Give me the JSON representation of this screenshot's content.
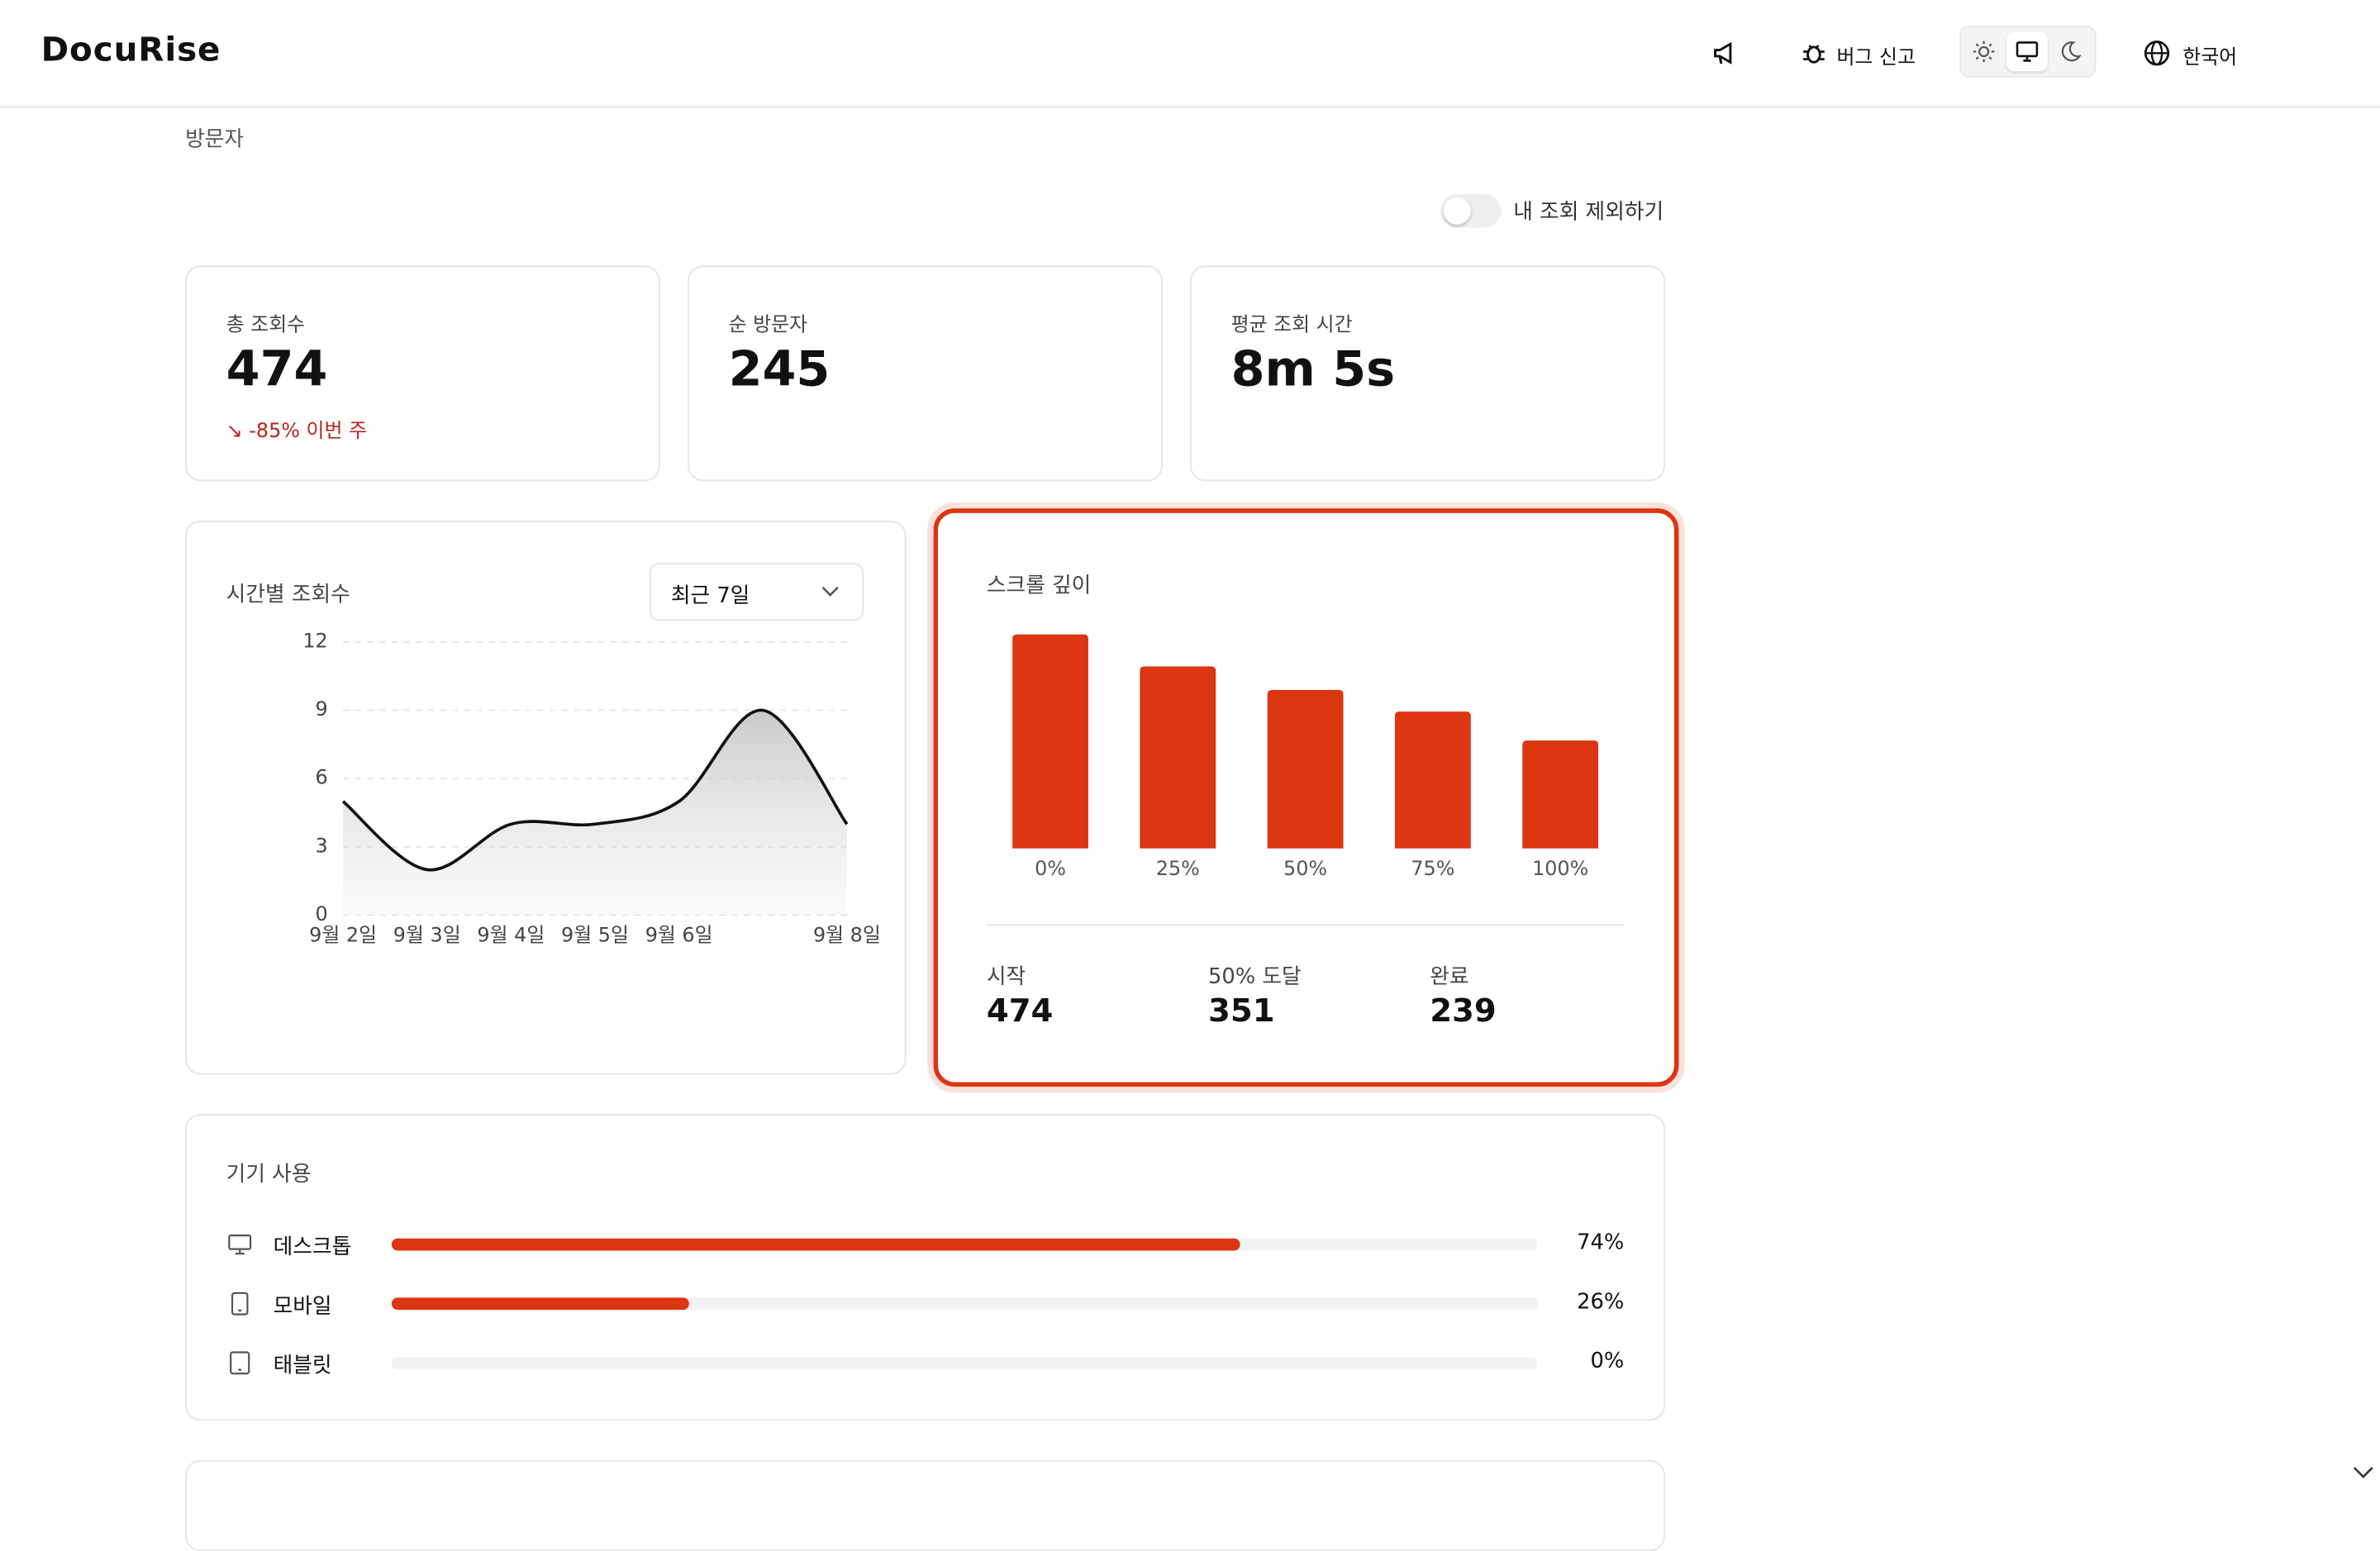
{
  "header": {
    "logo": "DocuRise",
    "bug_report": "버그 신고",
    "language": "한국어"
  },
  "page_title": "방문자",
  "toggle_label": "내 조회 제외하기",
  "stats": [
    {
      "label": "총 조회수",
      "value": "474",
      "change": "-85% 이번 주"
    },
    {
      "label": "순 방문자",
      "value": "245"
    },
    {
      "label": "평균 조회 시간",
      "value": "8m 5s"
    }
  ],
  "chart_data": [
    {
      "type": "line",
      "title": "시간별 조회수",
      "range_select": "최근 7일",
      "categories": [
        "9월 2일",
        "9월 3일",
        "9월 4일",
        "9월 5일",
        "9월 6일",
        null,
        "9월 8일"
      ],
      "values": [
        5,
        2,
        4,
        4,
        5,
        9,
        4
      ],
      "color": "#111111",
      "ylim": [
        0,
        12
      ],
      "yticks": [
        0,
        3,
        6,
        9,
        12
      ],
      "grid": true
    },
    {
      "type": "bar",
      "title": "스크롤 깊이",
      "categories": [
        "0%",
        "25%",
        "50%",
        "75%",
        "100%"
      ],
      "values": [
        474,
        403,
        351,
        303,
        239
      ],
      "color": "#dc3512"
    }
  ],
  "scroll_stats": [
    {
      "label": "시작",
      "value": "474"
    },
    {
      "label": "50% 도달",
      "value": "351"
    },
    {
      "label": "완료",
      "value": "239"
    }
  ],
  "devices": {
    "title": "기기 사용",
    "color": "#dc3512",
    "names": [
      "데스크톱",
      "모바일",
      "태블릿"
    ],
    "values": [
      74,
      26,
      0
    ],
    "value_labels": [
      "74%",
      "26%",
      "0%"
    ]
  }
}
